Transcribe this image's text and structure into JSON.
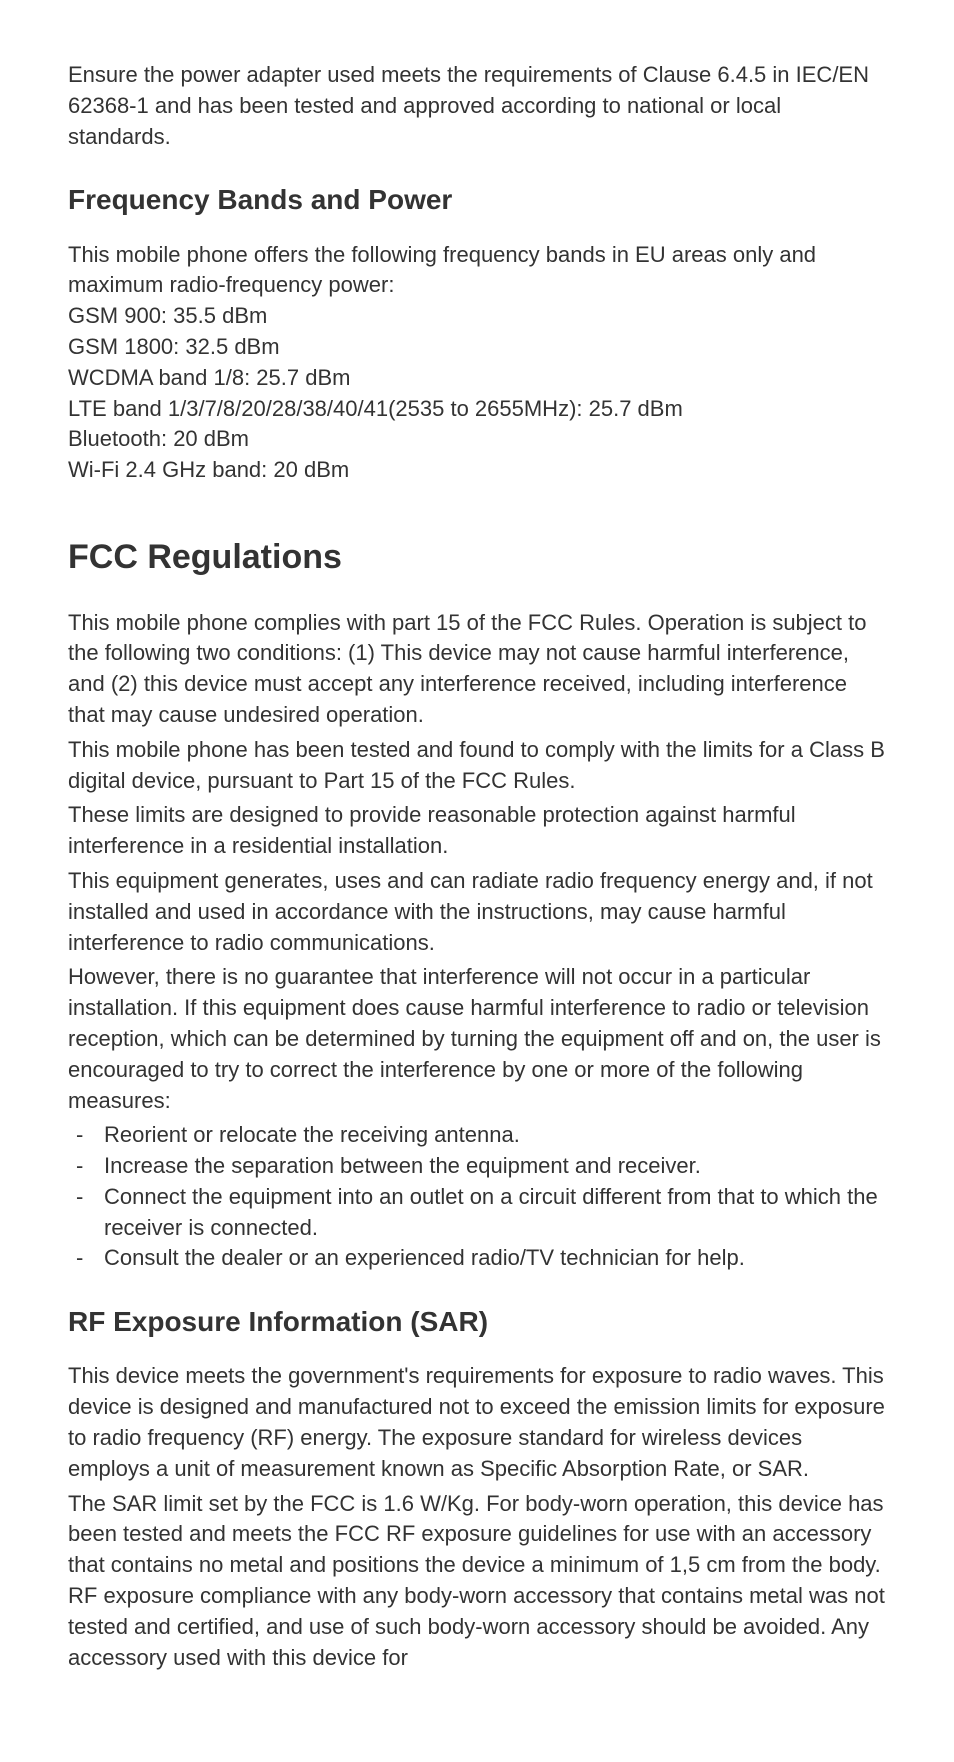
{
  "intro": {
    "para1": "Ensure the power adapter used meets the requirements of Clause 6.4.5 in IEC/EN 62368-1 and has been tested and approved according to national or local standards."
  },
  "freq": {
    "heading": "Frequency Bands and Power",
    "intro": "This mobile phone offers the following frequency bands in EU areas only and maximum radio-frequency power:",
    "bands": [
      "GSM 900: 35.5 dBm",
      "GSM 1800: 32.5 dBm",
      "WCDMA band 1/8: 25.7 dBm",
      "LTE band 1/3/7/8/20/28/38/40/41(2535 to 2655MHz): 25.7 dBm",
      "Bluetooth: 20 dBm",
      "Wi-Fi 2.4 GHz band: 20 dBm"
    ]
  },
  "fcc": {
    "heading": "FCC Regulations",
    "para1": "This mobile phone complies with part 15 of the FCC Rules. Operation is subject to the following two conditions: (1) This device may not cause harmful interference, and (2) this device must accept any interference received, including interference that may cause undesired operation.",
    "para2": "This mobile phone has been tested and found to comply with the limits for a Class B digital device, pursuant to Part 15 of the FCC Rules.",
    "para3": "These limits are designed to provide reasonable protection against harmful interference in a residential installation.",
    "para4": "This equipment generates, uses and can radiate radio frequency energy and, if not installed and used in accordance with the instructions, may cause harmful interference to radio communications.",
    "para5": "However, there is no guarantee that interference will not occur in a particular installation. If this equipment does cause harmful interference to radio or television reception, which can be determined by turning the equipment off and on, the user is encouraged to try to correct the interference by one or more of the following measures:",
    "measures": [
      "Reorient or relocate the receiving antenna.",
      "Increase the separation between the equipment and receiver.",
      "Connect the equipment into an outlet on a circuit different from that to which the receiver is connected.",
      "Consult the dealer or an experienced radio/TV technician for help."
    ]
  },
  "rf": {
    "heading": "RF Exposure Information (SAR)",
    "para1": "This device meets the government's requirements for exposure to radio waves. This device is designed and manufactured not to exceed the emission limits for exposure to radio frequency (RF) energy. The exposure standard for wireless devices employs a unit of measurement known as Specific Absorption Rate, or SAR.",
    "para2": "The SAR limit set by the FCC is 1.6 W/Kg. For body-worn operation, this device has been tested and meets the FCC RF exposure guidelines for use with an accessory that contains no metal and positions the device a minimum of 1,5 cm from the body. RF exposure compliance with any body-worn accessory that contains metal was not tested and certified, and use of such body-worn accessory should be avoided. Any accessory used with this device for"
  },
  "styling": {
    "body_font_size": 22,
    "h1_font_size": 34,
    "h2_font_size": 28,
    "text_color": "#333333",
    "background_color": "#ffffff",
    "body_width": 954,
    "line_height": 1.4
  }
}
